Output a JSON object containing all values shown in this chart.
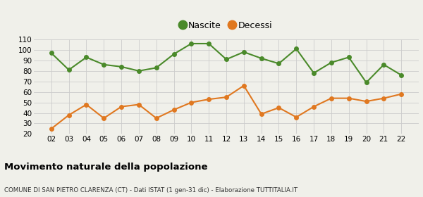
{
  "x_labels": [
    "02",
    "03",
    "04",
    "05",
    "06",
    "07",
    "08",
    "09",
    "10",
    "11",
    "12",
    "13",
    "14",
    "15",
    "16",
    "17",
    "18",
    "19",
    "20",
    "21",
    "22"
  ],
  "nascite": [
    97,
    81,
    93,
    86,
    84,
    80,
    83,
    96,
    106,
    106,
    91,
    98,
    92,
    87,
    101,
    78,
    88,
    93,
    69,
    86,
    76
  ],
  "decessi": [
    25,
    38,
    48,
    35,
    46,
    48,
    35,
    43,
    50,
    53,
    55,
    66,
    39,
    45,
    36,
    46,
    54,
    54,
    51,
    54,
    58
  ],
  "nascite_color": "#4a8a2a",
  "decessi_color": "#e07820",
  "background_color": "#f0f0ea",
  "grid_color": "#cccccc",
  "title": "Movimento naturale della popolazione",
  "subtitle": "COMUNE DI SAN PIETRO CLARENZA (CT) - Dati ISTAT (1 gen-31 dic) - Elaborazione TUTTITALIA.IT",
  "ylabel_min": 20,
  "ylabel_max": 110,
  "ylabel_step": 10,
  "legend_nascite": "Nascite",
  "legend_decessi": "Decessi",
  "marker_size": 4,
  "line_width": 1.5
}
